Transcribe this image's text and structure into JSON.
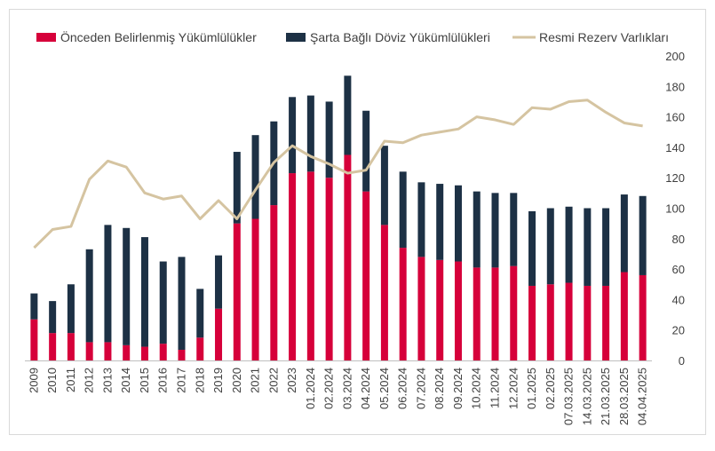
{
  "chart_data": {
    "type": "bar",
    "stacked": true,
    "categories": [
      "2009",
      "2010",
      "2011",
      "2012",
      "2013",
      "2014",
      "2015",
      "2016",
      "2017",
      "2018",
      "2019",
      "2020",
      "2021",
      "2022",
      "2023",
      "01.2024",
      "02.2024",
      "03.2024",
      "04.2024",
      "05.2024",
      "06.2024",
      "07.2024",
      "08.2024",
      "09.2024",
      "10.2024",
      "11.2024",
      "12.2024",
      "01.2025",
      "02.2025",
      "07.03.2025",
      "14.03.2025",
      "21.03.2025",
      "28.03.2025",
      "04.04.2025"
    ],
    "series": [
      {
        "name": "Önceden Belirlenmiş Yükümlülükler",
        "kind": "bar",
        "color": "#d6003a",
        "values": [
          27,
          18,
          18,
          12,
          12,
          10,
          9,
          11,
          7,
          15,
          34,
          90,
          93,
          102,
          123,
          124,
          120,
          135,
          111,
          89,
          74,
          68,
          66,
          65,
          61,
          61,
          62,
          49,
          50,
          51,
          49,
          49,
          58,
          56
        ]
      },
      {
        "name": "Şarta Bağlı Döviz Yükümlülükleri",
        "kind": "bar",
        "color": "#1d3145",
        "values": [
          17,
          21,
          32,
          61,
          77,
          77,
          72,
          54,
          61,
          32,
          35,
          47,
          55,
          55,
          50,
          50,
          50,
          52,
          53,
          52,
          50,
          49,
          50,
          50,
          50,
          49,
          48,
          49,
          50,
          50,
          51,
          51,
          51,
          52
        ]
      },
      {
        "name": "Resmi Rezerv Varlıkları",
        "kind": "line",
        "color": "#d5c4a1",
        "values": [
          74,
          86,
          88,
          119,
          131,
          127,
          110,
          106,
          108,
          93,
          105,
          93,
          112,
          130,
          141,
          134,
          129,
          123,
          125,
          144,
          143,
          148,
          150,
          152,
          160,
          158,
          155,
          166,
          165,
          170,
          171,
          163,
          156,
          154
        ]
      }
    ],
    "y_axis": {
      "position": "right",
      "min": 0,
      "max": 200,
      "step": 20
    },
    "grid": false,
    "legend": "top"
  }
}
